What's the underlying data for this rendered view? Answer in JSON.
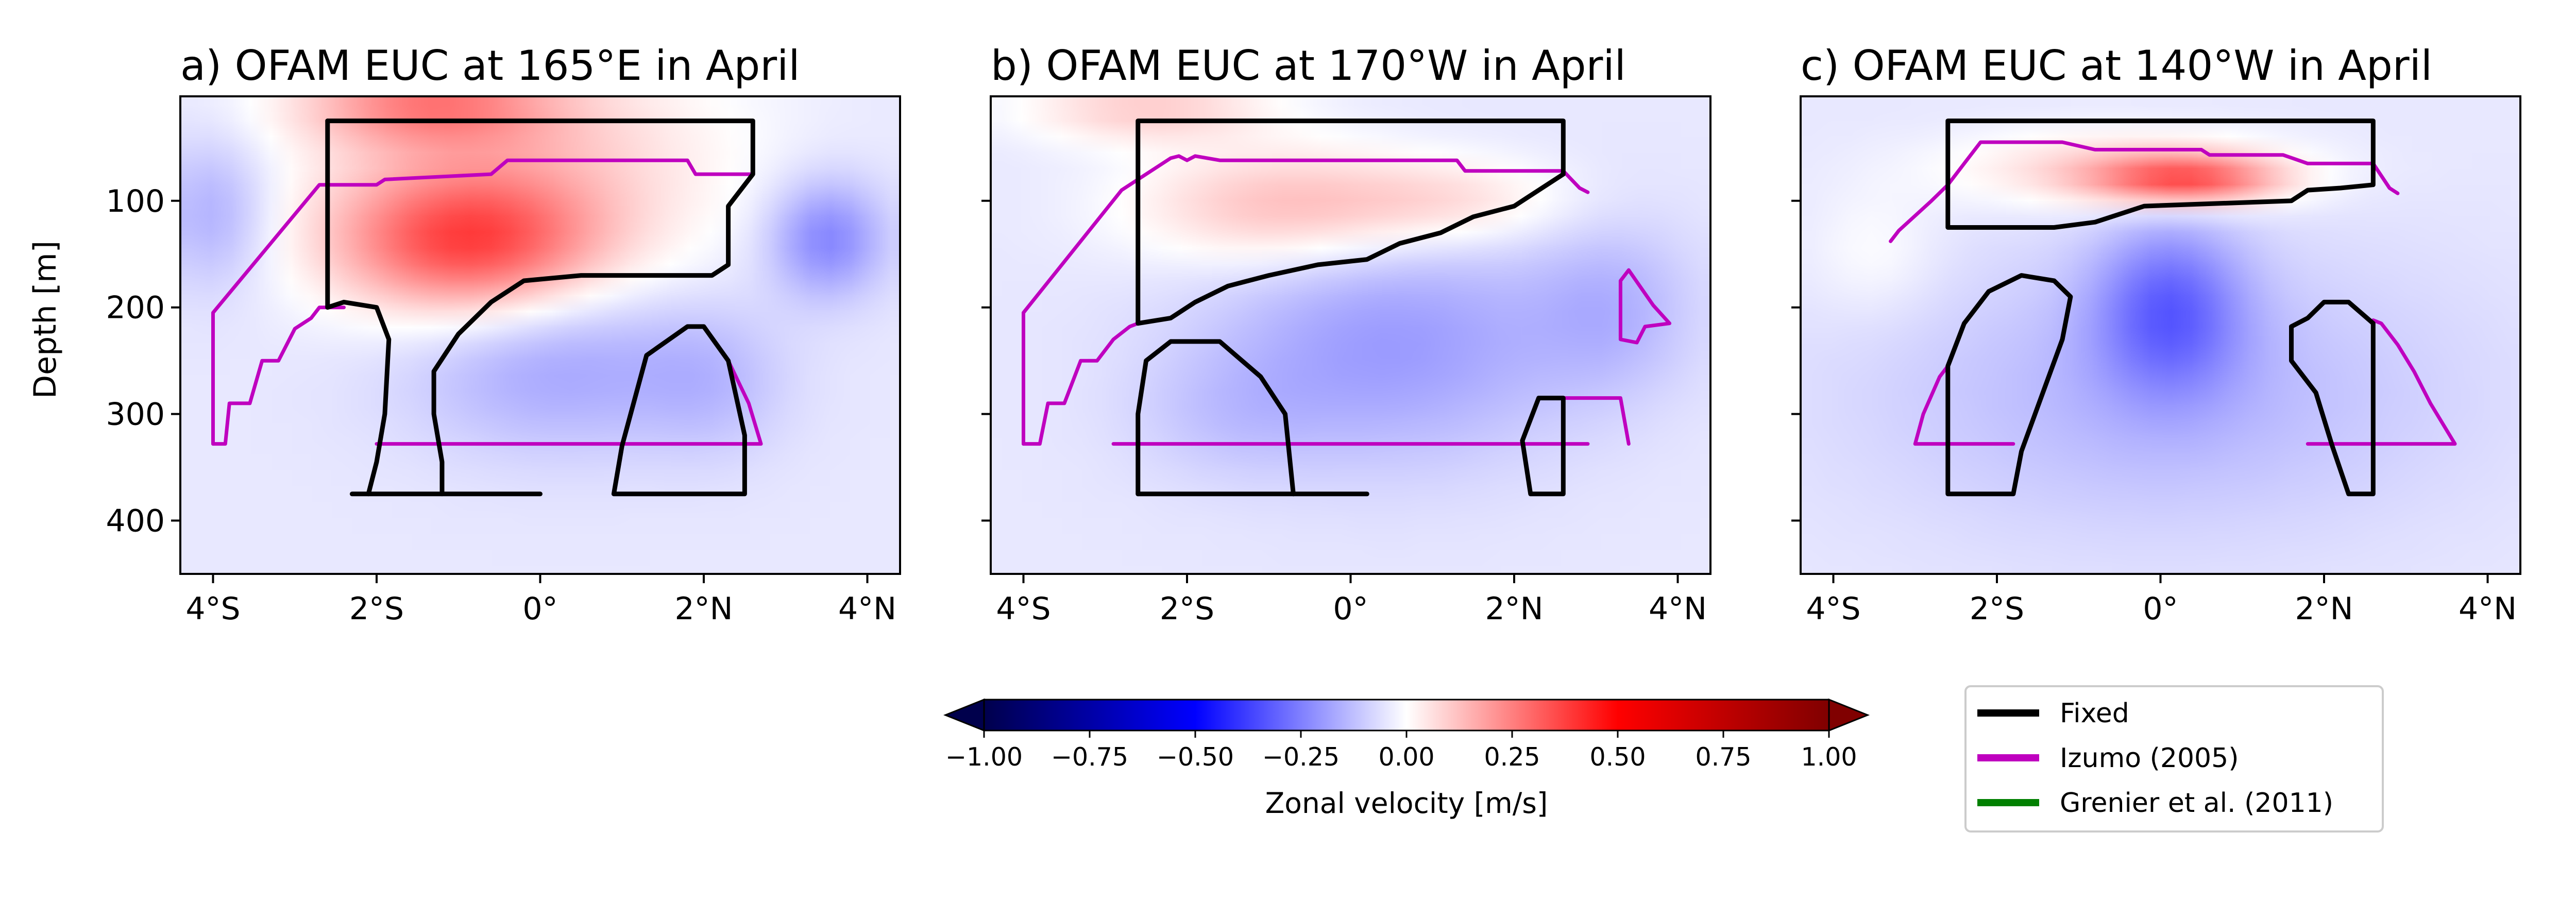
{
  "colors": {
    "fixed": "#000000",
    "izumo": "#bf00bf",
    "grenier": "#008000",
    "cmap": [
      "#00004c",
      "#0000ff",
      "#ffffff",
      "#ff0000",
      "#800000"
    ]
  },
  "colorbar": {
    "label": "Zonal velocity [m/s]",
    "ticks": [
      "−1.00",
      "−0.75",
      "−0.50",
      "−0.25",
      "0.00",
      "0.25",
      "0.50",
      "0.75",
      "1.00"
    ],
    "range": [
      -1.0,
      1.0
    ],
    "extend": "both"
  },
  "legend": {
    "placement": "bottom-right",
    "items": [
      {
        "label": "Fixed",
        "color": "#000000"
      },
      {
        "label": "Izumo (2005)",
        "color": "#bf00bf"
      },
      {
        "label": "Grenier et al. (2011)",
        "color": "#008000"
      }
    ]
  },
  "chart_data": [
    {
      "type": "heatmap",
      "title": "a) OFAM EUC at 165°E in April",
      "ylabel": "Depth [m]",
      "xlim": [
        -4.4,
        4.4
      ],
      "ylim": [
        450,
        2
      ],
      "xticks": [
        {
          "v": -4,
          "label": "4°S"
        },
        {
          "v": -2,
          "label": "2°S"
        },
        {
          "v": 0,
          "label": "0°"
        },
        {
          "v": 2,
          "label": "2°N"
        },
        {
          "v": 4,
          "label": "4°N"
        }
      ],
      "yticks": [
        {
          "v": 100,
          "label": "100"
        },
        {
          "v": 200,
          "label": "200"
        },
        {
          "v": 300,
          "label": "300"
        },
        {
          "v": 400,
          "label": "400"
        }
      ],
      "field": [
        {
          "lat": -0.9,
          "depth": 140,
          "u": 0.36,
          "rx": 1.6,
          "ry": 65
        },
        {
          "lat": -1.4,
          "depth": 12,
          "u": 0.22,
          "rx": 1.5,
          "ry": 35
        },
        {
          "lat": -0.3,
          "depth": 60,
          "u": 0.14,
          "rx": 2.6,
          "ry": 110
        },
        {
          "lat": 3.5,
          "depth": 135,
          "u": -0.2,
          "rx": 0.7,
          "ry": 55
        },
        {
          "lat": -4.0,
          "depth": 110,
          "u": -0.12,
          "rx": 0.7,
          "ry": 70
        },
        {
          "lat": 0.2,
          "depth": 255,
          "u": -0.13,
          "rx": 1.8,
          "ry": 80
        },
        {
          "lat": 2.1,
          "depth": 270,
          "u": -0.07,
          "rx": 0.9,
          "ry": 70
        }
      ],
      "fixed": [
        [
          [
            -2.6,
            25
          ],
          [
            2.6,
            25
          ],
          [
            2.6,
            75
          ],
          [
            2.3,
            105
          ],
          [
            2.3,
            160
          ],
          [
            2.1,
            170
          ],
          [
            0.5,
            170
          ],
          [
            -0.2,
            175
          ],
          [
            -0.6,
            195
          ],
          [
            -1.0,
            225
          ],
          [
            -1.3,
            260
          ],
          [
            -1.3,
            300
          ],
          [
            -1.2,
            345
          ],
          [
            -1.2,
            375
          ]
        ],
        [
          [
            -2.6,
            25
          ],
          [
            -2.6,
            200
          ],
          [
            -2.4,
            195
          ],
          [
            -2.0,
            200
          ],
          [
            -1.85,
            230
          ],
          [
            -1.9,
            300
          ],
          [
            -2.0,
            345
          ],
          [
            -2.1,
            375
          ]
        ],
        [
          [
            -2.3,
            375
          ],
          [
            0.0,
            375
          ]
        ],
        [
          [
            0.9,
            375
          ],
          [
            1.0,
            330
          ],
          [
            1.3,
            245
          ],
          [
            1.8,
            218
          ],
          [
            2.0,
            218
          ],
          [
            2.3,
            250
          ],
          [
            2.5,
            320
          ],
          [
            2.5,
            375
          ],
          [
            0.9,
            375
          ]
        ]
      ],
      "izumo": [
        [
          [
            -4.0,
            328
          ],
          [
            -4.0,
            205
          ],
          [
            -2.7,
            85
          ],
          [
            -2.0,
            85
          ],
          [
            -1.9,
            80
          ],
          [
            -0.6,
            75
          ],
          [
            -0.4,
            62
          ],
          [
            1.8,
            62
          ],
          [
            1.9,
            75
          ],
          [
            2.6,
            75
          ]
        ],
        [
          [
            -4.0,
            328
          ],
          [
            -3.85,
            328
          ],
          [
            -3.8,
            290
          ],
          [
            -3.55,
            290
          ],
          [
            -3.4,
            250
          ],
          [
            -3.2,
            250
          ],
          [
            -3.0,
            220
          ],
          [
            -2.8,
            210
          ],
          [
            -2.7,
            200
          ],
          [
            -2.4,
            200
          ]
        ],
        [
          [
            -2.0,
            328
          ],
          [
            2.7,
            328
          ],
          [
            2.55,
            290
          ],
          [
            2.3,
            250
          ]
        ]
      ],
      "grenier": []
    },
    {
      "type": "heatmap",
      "title": "b) OFAM EUC at 170°W in April",
      "ylabel": "",
      "xlim": [
        -4.4,
        4.4
      ],
      "ylim": [
        450,
        2
      ],
      "xticks": [
        {
          "v": -4,
          "label": "4°S"
        },
        {
          "v": -2,
          "label": "2°S"
        },
        {
          "v": 0,
          "label": "0°"
        },
        {
          "v": 2,
          "label": "2°N"
        },
        {
          "v": 4,
          "label": "4°N"
        }
      ],
      "yticks": [
        {
          "v": 100,
          "label": ""
        },
        {
          "v": 200,
          "label": ""
        },
        {
          "v": 300,
          "label": ""
        },
        {
          "v": 400,
          "label": ""
        }
      ],
      "field": [
        {
          "lat": -0.8,
          "depth": 105,
          "u": 0.18,
          "rx": 1.8,
          "ry": 55
        },
        {
          "lat": -2.5,
          "depth": 15,
          "u": 0.14,
          "rx": 1.5,
          "ry": 30
        },
        {
          "lat": 1.3,
          "depth": 100,
          "u": 0.1,
          "rx": 1.4,
          "ry": 40
        },
        {
          "lat": 0.5,
          "depth": 235,
          "u": -0.15,
          "rx": 2.2,
          "ry": 110
        },
        {
          "lat": 3.2,
          "depth": 200,
          "u": -0.09,
          "rx": 1.0,
          "ry": 80
        },
        {
          "lat": -1.5,
          "depth": 300,
          "u": -0.05,
          "rx": 1.2,
          "ry": 60
        }
      ],
      "fixed": [
        [
          [
            -2.6,
            25
          ],
          [
            2.6,
            25
          ],
          [
            2.6,
            75
          ],
          [
            2.3,
            90
          ],
          [
            2.0,
            105
          ],
          [
            1.5,
            115
          ],
          [
            1.1,
            130
          ],
          [
            0.6,
            140
          ],
          [
            0.2,
            155
          ],
          [
            -0.4,
            160
          ],
          [
            -1.0,
            170
          ],
          [
            -1.5,
            180
          ],
          [
            -1.9,
            195
          ],
          [
            -2.2,
            210
          ],
          [
            -2.6,
            215
          ],
          [
            -2.6,
            25
          ]
        ],
        [
          [
            -2.6,
            375
          ],
          [
            -2.6,
            300
          ],
          [
            -2.5,
            250
          ],
          [
            -2.2,
            232
          ],
          [
            -1.6,
            232
          ],
          [
            -1.1,
            265
          ],
          [
            -0.8,
            300
          ],
          [
            -0.7,
            375
          ]
        ],
        [
          [
            -2.6,
            375
          ],
          [
            -0.7,
            375
          ]
        ],
        [
          [
            -0.7,
            375
          ],
          [
            0.2,
            375
          ]
        ],
        [
          [
            2.1,
            325
          ],
          [
            2.3,
            285
          ],
          [
            2.6,
            285
          ],
          [
            2.6,
            375
          ],
          [
            2.2,
            375
          ],
          [
            2.1,
            325
          ]
        ]
      ],
      "izumo": [
        [
          [
            -4.0,
            328
          ],
          [
            -4.0,
            205
          ],
          [
            -2.8,
            90
          ],
          [
            -2.2,
            60
          ],
          [
            -2.1,
            58
          ],
          [
            -2.0,
            62
          ],
          [
            -1.9,
            58
          ],
          [
            -1.6,
            62
          ],
          [
            1.3,
            62
          ],
          [
            1.4,
            72
          ],
          [
            2.6,
            72
          ],
          [
            2.8,
            88
          ],
          [
            2.9,
            92
          ]
        ],
        [
          [
            -4.0,
            328
          ],
          [
            -3.8,
            328
          ],
          [
            -3.7,
            290
          ],
          [
            -3.5,
            290
          ],
          [
            -3.3,
            250
          ],
          [
            -3.1,
            250
          ],
          [
            -2.9,
            230
          ],
          [
            -2.7,
            218
          ],
          [
            -2.6,
            215
          ]
        ],
        [
          [
            -2.9,
            328
          ],
          [
            2.9,
            328
          ]
        ],
        [
          [
            2.6,
            285
          ],
          [
            3.3,
            285
          ],
          [
            3.4,
            328
          ]
        ],
        [
          [
            3.4,
            165
          ],
          [
            3.7,
            198
          ],
          [
            3.9,
            215
          ],
          [
            3.6,
            218
          ],
          [
            3.5,
            233
          ],
          [
            3.3,
            230
          ],
          [
            3.3,
            175
          ],
          [
            3.4,
            165
          ]
        ]
      ],
      "grenier": []
    },
    {
      "type": "heatmap",
      "title": "c) OFAM EUC at 140°W in April",
      "ylabel": "",
      "xlim": [
        -4.4,
        4.4
      ],
      "ylim": [
        450,
        2
      ],
      "xticks": [
        {
          "v": -4,
          "label": "4°S"
        },
        {
          "v": -2,
          "label": "2°S"
        },
        {
          "v": 0,
          "label": "0°"
        },
        {
          "v": 2,
          "label": "2°N"
        },
        {
          "v": 4,
          "label": "4°N"
        }
      ],
      "yticks": [
        {
          "v": 100,
          "label": ""
        },
        {
          "v": 200,
          "label": ""
        },
        {
          "v": 300,
          "label": ""
        },
        {
          "v": 400,
          "label": ""
        }
      ],
      "field": [
        {
          "lat": 0.3,
          "depth": 80,
          "u": 0.34,
          "rx": 1.1,
          "ry": 22
        },
        {
          "lat": -0.5,
          "depth": 70,
          "u": 0.14,
          "rx": 2.0,
          "ry": 35
        },
        {
          "lat": 0.1,
          "depth": 200,
          "u": -0.22,
          "rx": 0.9,
          "ry": 80
        },
        {
          "lat": 0.0,
          "depth": 280,
          "u": -0.1,
          "rx": 3.5,
          "ry": 130
        },
        {
          "lat": -3.5,
          "depth": 150,
          "u": 0.05,
          "rx": 0.8,
          "ry": 60
        }
      ],
      "fixed": [
        [
          [
            -2.6,
            25
          ],
          [
            2.6,
            25
          ],
          [
            2.6,
            85
          ],
          [
            2.2,
            88
          ],
          [
            1.8,
            90
          ],
          [
            1.6,
            100
          ],
          [
            -0.2,
            105
          ],
          [
            -0.8,
            120
          ],
          [
            -1.3,
            125
          ],
          [
            -2.6,
            125
          ],
          [
            -2.6,
            25
          ]
        ],
        [
          [
            -2.6,
            375
          ],
          [
            -2.6,
            255
          ],
          [
            -2.4,
            215
          ],
          [
            -2.1,
            185
          ],
          [
            -1.7,
            170
          ],
          [
            -1.3,
            175
          ],
          [
            -1.1,
            190
          ],
          [
            -1.2,
            230
          ],
          [
            -1.7,
            335
          ],
          [
            -1.8,
            375
          ],
          [
            -2.6,
            375
          ]
        ],
        [
          [
            2.6,
            375
          ],
          [
            2.6,
            215
          ],
          [
            2.3,
            195
          ],
          [
            2.0,
            195
          ],
          [
            1.8,
            210
          ],
          [
            1.6,
            218
          ],
          [
            1.6,
            250
          ],
          [
            1.9,
            280
          ],
          [
            2.1,
            330
          ],
          [
            2.3,
            375
          ],
          [
            2.6,
            375
          ]
        ]
      ],
      "izumo": [
        [
          [
            -3.3,
            138
          ],
          [
            -3.2,
            128
          ],
          [
            -2.8,
            100
          ],
          [
            -2.6,
            85
          ],
          [
            -2.2,
            45
          ],
          [
            -1.2,
            45
          ],
          [
            -0.8,
            52
          ],
          [
            0.5,
            52
          ],
          [
            0.6,
            57
          ],
          [
            1.5,
            57
          ],
          [
            1.8,
            65
          ],
          [
            2.6,
            65
          ],
          [
            2.8,
            88
          ],
          [
            2.9,
            93
          ]
        ],
        [
          [
            -3.0,
            328
          ],
          [
            -1.8,
            328
          ]
        ],
        [
          [
            -3.0,
            328
          ],
          [
            -2.9,
            300
          ],
          [
            -2.7,
            265
          ],
          [
            -2.6,
            255
          ]
        ],
        [
          [
            1.8,
            328
          ],
          [
            3.6,
            328
          ],
          [
            3.3,
            290
          ],
          [
            3.1,
            260
          ],
          [
            2.9,
            235
          ],
          [
            2.7,
            215
          ],
          [
            2.6,
            212
          ]
        ]
      ],
      "grenier": []
    }
  ]
}
